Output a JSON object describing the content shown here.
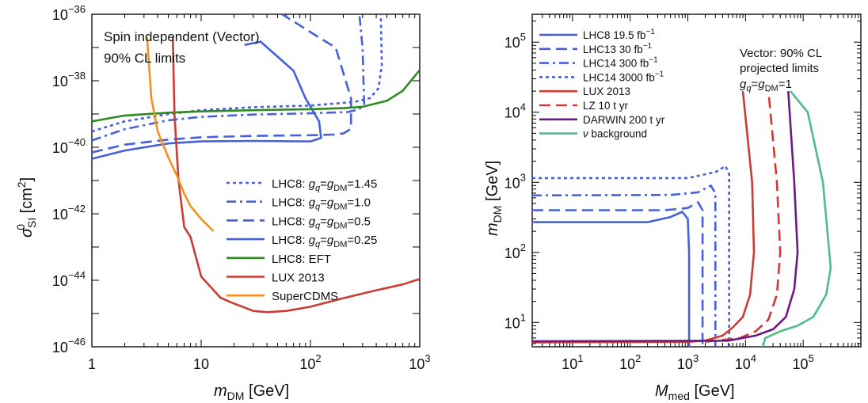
{
  "chart_data": [
    {
      "type": "line",
      "xlabel": "mDM [GeV]",
      "ylabel": "σSI0 [cm2]",
      "xscale": "log",
      "yscale": "log",
      "xlim": [
        1,
        1000
      ],
      "ylim": [
        1e-46,
        1e-36
      ],
      "x_ticks": [
        {
          "value": 1,
          "label": "1"
        },
        {
          "value": 10,
          "label": "10"
        },
        {
          "value": 100,
          "label": "10",
          "exp": "2"
        },
        {
          "value": 1000,
          "label": "10",
          "exp": "3"
        }
      ],
      "y_ticks": [
        {
          "value": 1e-36,
          "label": "10",
          "exp": "−36"
        },
        {
          "value": 1e-38,
          "label": "10",
          "exp": "−38"
        },
        {
          "value": 1e-40,
          "label": "10",
          "exp": "−40"
        },
        {
          "value": 1e-42,
          "label": "10",
          "exp": "−42"
        },
        {
          "value": 1e-44,
          "label": "10",
          "exp": "−44"
        },
        {
          "value": 1e-46,
          "label": "10",
          "exp": "−46"
        }
      ],
      "annotation": [
        "Spin independent (Vector)",
        "90% CL limits"
      ],
      "legend_position": "lower-right",
      "series": [
        {
          "name": "LHC8: gq=gDM=1.45",
          "color": "#4560d8",
          "dash": "dot",
          "points": [
            [
              1,
              3e-40
            ],
            [
              2,
              6e-40
            ],
            [
              5,
              1e-39
            ],
            [
              10,
              1.3e-39
            ],
            [
              30,
              1.6e-39
            ],
            [
              100,
              1.8e-39
            ],
            [
              250,
              2.3e-39
            ],
            [
              350,
              3e-39
            ],
            [
              420,
              6e-39
            ],
            [
              450,
              3e-38
            ],
            [
              440,
              1e-36
            ]
          ]
        },
        {
          "name": "LHC8: gq=gDM=1.0",
          "color": "#4560d8",
          "dash": "dashdot",
          "points": [
            [
              1,
              1.6e-40
            ],
            [
              2,
              3.5e-40
            ],
            [
              5,
              6.5e-40
            ],
            [
              10,
              8.2e-40
            ],
            [
              30,
              9.6e-40
            ],
            [
              100,
              1.05e-39
            ],
            [
              220,
              1.15e-39
            ],
            [
              280,
              1.4e-39
            ],
            [
              310,
              2e-39
            ],
            [
              300,
              1e-37
            ],
            [
              280,
              1e-36
            ]
          ]
        },
        {
          "name": "LHC8: gq=gDM=0.5",
          "color": "#4560d8",
          "dash": "dash",
          "points": [
            [
              1,
              7e-41
            ],
            [
              2,
              1.2e-40
            ],
            [
              5,
              1.7e-40
            ],
            [
              10,
              2e-40
            ],
            [
              30,
              2.2e-40
            ],
            [
              100,
              2.3e-40
            ],
            [
              160,
              2.4e-40
            ],
            [
              200,
              2.6e-40
            ],
            [
              235,
              3.6e-40
            ],
            [
              235,
              3e-39
            ],
            [
              170,
              1e-37
            ],
            [
              120,
              2e-37
            ],
            [
              55,
              1e-36
            ]
          ]
        },
        {
          "name": "LHC8: gq=gDM=0.25",
          "color": "#4560d8",
          "dash": "solid",
          "points": [
            [
              1,
              4.5e-41
            ],
            [
              2,
              8e-41
            ],
            [
              5,
              1.3e-40
            ],
            [
              10,
              1.5e-40
            ],
            [
              30,
              1.55e-40
            ],
            [
              100,
              1.5e-40
            ],
            [
              125,
              1.9e-40
            ],
            [
              120,
              6e-40
            ],
            [
              90,
              3e-39
            ],
            [
              70,
              2e-38
            ],
            [
              35,
              1.5e-37
            ],
            [
              25,
              1.2e-37
            ]
          ]
        },
        {
          "name": "LHC8: EFT",
          "color": "#2f8a22",
          "dash": "solid",
          "points": [
            [
              1,
              6e-40
            ],
            [
              2,
              9e-40
            ],
            [
              5,
              1.1e-39
            ],
            [
              10,
              1.2e-39
            ],
            [
              30,
              1.3e-39
            ],
            [
              100,
              1.4e-39
            ],
            [
              200,
              1.5e-39
            ],
            [
              300,
              1.65e-39
            ],
            [
              500,
              2.5e-39
            ],
            [
              700,
              5e-39
            ],
            [
              1000,
              2.1e-38
            ]
          ]
        },
        {
          "name": "LUX 2013",
          "color": "#cc3b34",
          "dash": "solid",
          "points": [
            [
              5.5,
              2e-37
            ],
            [
              5.7,
              1e-39
            ],
            [
              6.2,
              1e-41
            ],
            [
              7,
              4e-43
            ],
            [
              8,
              2e-43
            ],
            [
              10,
              1.3e-44
            ],
            [
              15,
              3e-45
            ],
            [
              20,
              2e-45
            ],
            [
              30,
              1.2e-45
            ],
            [
              40,
              1.1e-45
            ],
            [
              60,
              1.2e-45
            ],
            [
              100,
              1.6e-45
            ],
            [
              200,
              2.9e-45
            ],
            [
              400,
              5e-45
            ],
            [
              700,
              7.5e-45
            ],
            [
              1000,
              1.1e-44
            ]
          ]
        },
        {
          "name": "SuperCDMS",
          "color": "#f5901e",
          "dash": "solid",
          "points": [
            [
              3.2,
              2e-37
            ],
            [
              3.5,
              3e-39
            ],
            [
              4,
              3e-40
            ],
            [
              5,
              5e-41
            ],
            [
              6,
              1.4e-41
            ],
            [
              7,
              4e-42
            ],
            [
              8,
              1.7e-42
            ],
            [
              10,
              7e-43
            ],
            [
              13,
              3e-43
            ]
          ]
        }
      ]
    },
    {
      "type": "line",
      "xlabel": "Mmed [GeV]",
      "ylabel": "mDM [GeV]",
      "xscale": "log",
      "yscale": "log",
      "xlim": [
        2,
        1000000
      ],
      "ylim": [
        4.5,
        250000
      ],
      "x_ticks": [
        {
          "value": 10,
          "label": "10",
          "exp": "1"
        },
        {
          "value": 100,
          "label": "10",
          "exp": "2"
        },
        {
          "value": 1000,
          "label": "10",
          "exp": "3"
        },
        {
          "value": 10000,
          "label": "10",
          "exp": "4"
        },
        {
          "value": 100000,
          "label": "10",
          "exp": "5"
        }
      ],
      "y_ticks": [
        {
          "value": 10,
          "label": "10",
          "exp": "1"
        },
        {
          "value": 100,
          "label": "10",
          "exp": "2"
        },
        {
          "value": 1000,
          "label": "10",
          "exp": "3"
        },
        {
          "value": 10000,
          "label": "10",
          "exp": "4"
        },
        {
          "value": 100000,
          "label": "10",
          "exp": "5"
        }
      ],
      "annotation": [
        "Vector: 90% CL",
        "projected limits",
        "gq=gDM=1"
      ],
      "legend_position": "top-left",
      "series": [
        {
          "name": "LHC8 19.5 fb−1",
          "color": "#4560d8",
          "dash": "solid",
          "points": [
            [
              2,
              270
            ],
            [
              200,
              270
            ],
            [
              500,
              320
            ],
            [
              800,
              380
            ],
            [
              1000,
              300
            ],
            [
              1050,
              100
            ],
            [
              1050,
              4.5
            ]
          ]
        },
        {
          "name": "LHC13 30 fb−1",
          "color": "#4560d8",
          "dash": "dash",
          "points": [
            [
              2,
              400
            ],
            [
              400,
              400
            ],
            [
              1000,
              430
            ],
            [
              1500,
              520
            ],
            [
              1800,
              400
            ],
            [
              1800,
              4.5
            ]
          ]
        },
        {
          "name": "LHC14 300 fb−1",
          "color": "#4560d8",
          "dash": "dashdot",
          "points": [
            [
              2,
              650
            ],
            [
              500,
              660
            ],
            [
              1500,
              720
            ],
            [
              2500,
              900
            ],
            [
              3000,
              700
            ],
            [
              3000,
              4.5
            ]
          ]
        },
        {
          "name": "LHC14 3000 fb−1",
          "color": "#4560d8",
          "dash": "dot",
          "points": [
            [
              2,
              1150
            ],
            [
              1000,
              1150
            ],
            [
              3000,
              1400
            ],
            [
              4500,
              1700
            ],
            [
              5200,
              1300
            ],
            [
              5200,
              4.5
            ]
          ]
        },
        {
          "name": "LUX 2013",
          "color": "#cc3b34",
          "dash": "solid",
          "points": [
            [
              2,
              5.2
            ],
            [
              1000,
              5.3
            ],
            [
              2000,
              5.5
            ],
            [
              4000,
              6.5
            ],
            [
              6000,
              8.5
            ],
            [
              9000,
              12
            ],
            [
              12000,
              25
            ],
            [
              14000,
              100
            ],
            [
              13000,
              1000
            ],
            [
              9000,
              20000
            ]
          ]
        },
        {
          "name": "LZ 10 t yr",
          "color": "#cc3b34",
          "dash": "dash",
          "points": [
            [
              2000,
              5.3
            ],
            [
              8000,
              6
            ],
            [
              15000,
              7.5
            ],
            [
              25000,
              11
            ],
            [
              35000,
              25
            ],
            [
              40000,
              100
            ],
            [
              35000,
              1000
            ],
            [
              25000,
              20000
            ]
          ]
        },
        {
          "name": "DARWIN 200 t yr",
          "color": "#6a1a80",
          "dash": "solid",
          "points": [
            [
              2,
              5.4
            ],
            [
              5000,
              5.5
            ],
            [
              15000,
              6.5
            ],
            [
              30000,
              8
            ],
            [
              50000,
              12
            ],
            [
              70000,
              30
            ],
            [
              80000,
              100
            ],
            [
              70000,
              1000
            ],
            [
              55000,
              20000
            ]
          ]
        },
        {
          "name": "ν background",
          "color": "#4fbc8e",
          "dash": "solid",
          "points": [
            [
              20000,
              4.5
            ],
            [
              22000,
              6
            ],
            [
              40000,
              7.5
            ],
            [
              80000,
              9
            ],
            [
              150000,
              12
            ],
            [
              250000,
              25
            ],
            [
              300000,
              60
            ],
            [
              220000,
              1000
            ],
            [
              120000,
              10000
            ],
            [
              60000,
              20000
            ]
          ]
        }
      ]
    }
  ],
  "panel1_legend": [
    {
      "pre": "LHC8: ",
      "label": "g",
      "sub1": "q",
      "mid": "=g",
      "sub2": "DM",
      "post": "=1.45",
      "dash": "dot"
    },
    {
      "pre": "LHC8: ",
      "label": "g",
      "sub1": "q",
      "mid": "=g",
      "sub2": "DM",
      "post": "=1.0",
      "dash": "dashdot"
    },
    {
      "pre": "LHC8: ",
      "label": "g",
      "sub1": "q",
      "mid": "=g",
      "sub2": "DM",
      "post": "=0.5",
      "dash": "dash"
    },
    {
      "pre": "LHC8: ",
      "label": "g",
      "sub1": "q",
      "mid": "=g",
      "sub2": "DM",
      "post": "=0.25",
      "dash": "solid"
    }
  ]
}
